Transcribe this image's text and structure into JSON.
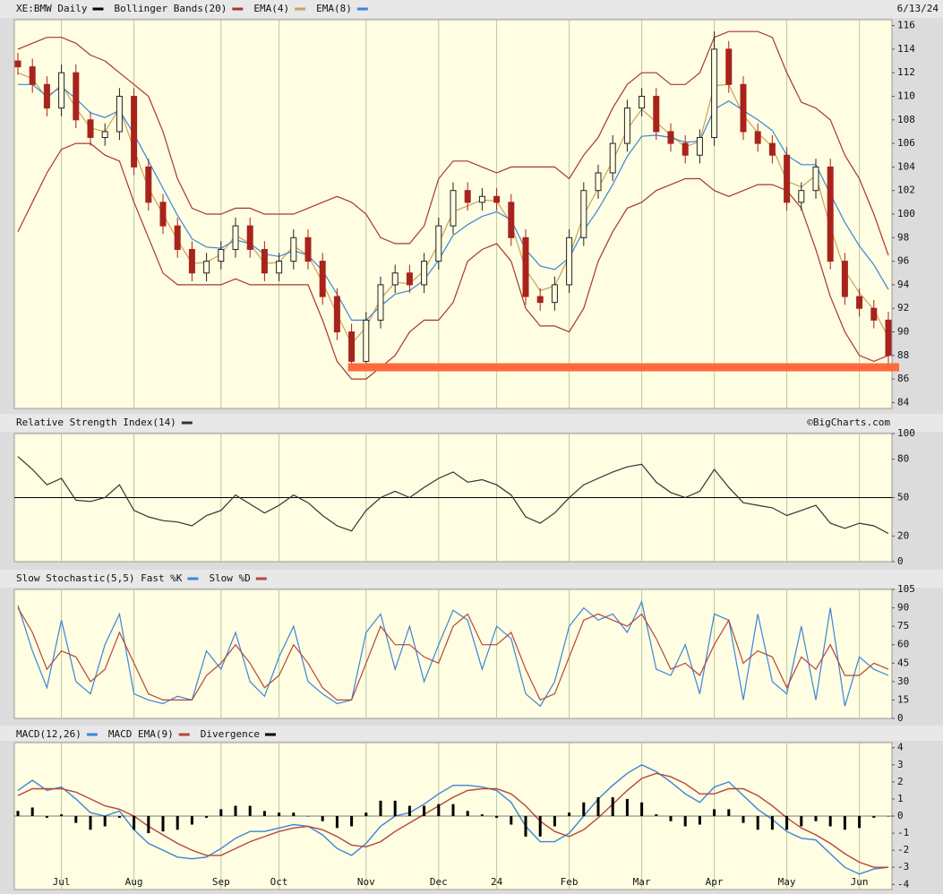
{
  "chart_data": [
    {
      "type": "candlestick",
      "title": "XE:BMW Daily",
      "color": "#000000",
      "date": "6/13/24",
      "up_color": "#222222",
      "down_color": "#a8231c",
      "open": [
        113,
        112.5,
        111,
        109,
        112,
        108,
        106.5,
        107,
        110,
        104,
        101,
        99,
        97,
        95,
        96,
        97,
        99,
        97,
        95,
        96,
        98,
        96,
        93,
        90,
        87.5,
        91,
        94,
        95,
        94,
        96,
        99,
        102,
        101,
        101.5,
        101,
        98,
        93,
        92.5,
        94,
        98,
        102,
        103.5,
        106,
        109,
        110,
        107,
        106,
        105,
        106.5,
        114,
        111,
        107,
        106,
        105,
        101,
        102,
        104,
        96,
        93,
        92,
        91
      ],
      "high": [
        113.7,
        113.2,
        111.7,
        112.7,
        112.7,
        108.7,
        107.7,
        110.7,
        110.7,
        104.7,
        101.7,
        99.7,
        97.7,
        96.7,
        97.7,
        99.7,
        99.7,
        97.7,
        96.7,
        98.7,
        98.7,
        96.7,
        93.7,
        90.7,
        91.7,
        94.7,
        95.7,
        95.7,
        96.7,
        99.7,
        102.7,
        102.7,
        102.2,
        102.2,
        101.7,
        98.7,
        93.7,
        94.7,
        98.7,
        102.7,
        104.2,
        106.7,
        109.7,
        110.7,
        110.7,
        107.7,
        106.7,
        107.2,
        115.5,
        114.7,
        111.7,
        107.7,
        106.7,
        105.7,
        102.7,
        104.7,
        104.7,
        96.7,
        93.7,
        92.7,
        91.7
      ],
      "low": [
        111.8,
        110.3,
        108.3,
        108.3,
        107.3,
        105.8,
        105.8,
        106.3,
        103.3,
        100.3,
        98.3,
        96.3,
        94.3,
        94.3,
        95.3,
        96.3,
        96.3,
        94.3,
        94.3,
        95.3,
        95.3,
        92.3,
        89.3,
        86.8,
        86.8,
        90.3,
        93.3,
        93.3,
        93.3,
        95.3,
        98.3,
        100.3,
        100.3,
        100.3,
        97.3,
        92.3,
        91.8,
        91.8,
        93.3,
        97.3,
        101.3,
        102.8,
        105.3,
        108.3,
        106.3,
        105.3,
        104.3,
        104.3,
        105.8,
        110.3,
        106.3,
        105.3,
        104.3,
        100.3,
        100.3,
        101.3,
        95.3,
        92.3,
        91.3,
        90.3,
        87.3
      ],
      "close": [
        112.5,
        111,
        109,
        112,
        108,
        106.5,
        107,
        110,
        104,
        101,
        99,
        97,
        95,
        96,
        97,
        99,
        97,
        95,
        96,
        98,
        96,
        93,
        90,
        87.5,
        91,
        94,
        95,
        94,
        96,
        99,
        102,
        101,
        101.5,
        101,
        98,
        93,
        92.5,
        94,
        98,
        102,
        103.5,
        106,
        109,
        110,
        107,
        106,
        105,
        106.5,
        114,
        111,
        107,
        106,
        105,
        101,
        102,
        104,
        96,
        93,
        92,
        91,
        88
      ],
      "series": [
        {
          "name": "Bollinger Bands(20)",
          "color": "#a8382e",
          "upper": [
            114,
            114.5,
            115,
            115,
            114.5,
            113.5,
            113,
            112,
            111,
            110,
            107,
            103,
            100.5,
            100,
            100,
            100.5,
            100.5,
            100,
            100,
            100,
            100.5,
            101,
            101.5,
            101,
            100,
            98,
            97.5,
            97.5,
            99,
            103,
            104.5,
            104.5,
            104,
            103.5,
            104,
            104,
            104,
            104,
            103,
            105,
            106.5,
            109,
            111,
            112,
            112,
            111,
            111,
            112,
            115,
            115.5,
            115.5,
            115.5,
            115,
            112,
            109.5,
            109,
            108,
            105,
            103,
            100,
            96.5
          ],
          "lower": [
            98.5,
            101,
            103.5,
            105.5,
            106,
            106,
            105,
            104.5,
            101,
            98,
            95,
            94,
            94,
            94,
            94,
            94.5,
            94,
            94,
            94,
            94,
            94,
            91,
            87.5,
            86,
            86,
            87,
            88,
            90,
            91,
            91,
            92.5,
            96,
            97,
            97.5,
            96,
            92,
            90.5,
            90.5,
            90,
            92,
            96,
            98.5,
            100.5,
            101,
            102,
            102.5,
            103,
            103,
            102,
            101.5,
            102,
            102.5,
            102.5,
            102,
            100.5,
            97,
            93,
            90,
            88,
            87.5,
            88
          ]
        },
        {
          "name": "EMA(4)",
          "color": "#c9a35a",
          "values": [
            112,
            111.5,
            109.8,
            111,
            109,
            107.3,
            107,
            109,
            105.5,
            102.2,
            100,
            97.8,
            95.8,
            95.9,
            96.6,
            98.2,
            97.5,
            95.8,
            95.9,
            97.3,
            96.5,
            94.2,
            91.5,
            89,
            90.4,
            92.8,
            94.2,
            94.1,
            95.2,
            97.5,
            100.2,
            100.7,
            101.2,
            101.1,
            99.2,
            95.3,
            93.5,
            93.9,
            96.4,
            99.9,
            102.2,
            104.5,
            107.2,
            108.9,
            107.8,
            106.7,
            105.7,
            106.2,
            110.9,
            111,
            108.4,
            106.9,
            105.7,
            102.8,
            102.3,
            103.3,
            98.9,
            95.2,
            93.3,
            91.9,
            89.5
          ]
        },
        {
          "name": "EMA(8)",
          "color": "#3b86d8",
          "values": [
            111,
            111,
            110,
            110.8,
            109.8,
            108.6,
            108.2,
            108.8,
            106.8,
            104.5,
            102.2,
            99.9,
            97.9,
            97.2,
            97.1,
            97.8,
            97.5,
            96.6,
            96.4,
            96.9,
            96.5,
            95.2,
            93.2,
            91,
            91,
            92.2,
            93.2,
            93.5,
            94.4,
            96.1,
            98.2,
            99.1,
            99.8,
            100.2,
            99.5,
            97,
            95.6,
            95.3,
            96.3,
            98.6,
            100.4,
            102.5,
            104.9,
            106.6,
            106.7,
            106.5,
            106.1,
            106.2,
            108.9,
            109.6,
            108.8,
            108,
            107.1,
            105,
            104.2,
            104.2,
            101.7,
            99.3,
            97.3,
            95.7,
            93.6
          ]
        }
      ],
      "support_level": {
        "value": 87,
        "color": "#ff6a3d"
      },
      "ylim": [
        83.5,
        116.5
      ],
      "yticks": [
        84,
        86,
        88,
        90,
        92,
        94,
        96,
        98,
        100,
        102,
        104,
        106,
        108,
        110,
        112,
        114,
        116
      ]
    },
    {
      "type": "line",
      "credit": "©BigCharts.com",
      "series": [
        {
          "name": "Relative Strength Index(14)",
          "color": "#333333",
          "values": [
            82,
            72,
            60,
            65,
            48,
            47,
            50,
            60,
            40,
            35,
            32,
            31,
            28,
            36,
            40,
            52,
            45,
            38,
            44,
            52,
            46,
            36,
            28,
            24,
            40,
            50,
            55,
            50,
            58,
            65,
            70,
            62,
            64,
            60,
            52,
            35,
            30,
            38,
            50,
            60,
            65,
            70,
            74,
            76,
            62,
            54,
            50,
            55,
            72,
            58,
            46,
            44,
            42,
            36,
            40,
            44,
            30,
            26,
            30,
            28,
            22
          ]
        }
      ],
      "reference_line": 50,
      "ylim": [
        0,
        100
      ],
      "yticks": [
        0,
        20,
        50,
        80,
        100
      ]
    },
    {
      "type": "line",
      "series": [
        {
          "name": "Slow Stochastic(5,5) Fast %K",
          "color": "#3b86d8",
          "values": [
            92,
            55,
            25,
            80,
            30,
            20,
            60,
            85,
            20,
            15,
            12,
            18,
            15,
            55,
            40,
            70,
            30,
            18,
            50,
            75,
            30,
            20,
            12,
            15,
            70,
            85,
            40,
            75,
            30,
            60,
            88,
            80,
            40,
            75,
            65,
            20,
            10,
            30,
            75,
            90,
            80,
            85,
            70,
            95,
            40,
            35,
            60,
            20,
            85,
            80,
            15,
            85,
            30,
            20,
            75,
            15,
            90,
            10,
            50,
            40,
            35
          ]
        },
        {
          "name": "Slow %D",
          "color": "#b5473a",
          "values": [
            90,
            70,
            40,
            55,
            50,
            30,
            40,
            70,
            45,
            20,
            15,
            15,
            15,
            35,
            45,
            60,
            45,
            25,
            35,
            60,
            45,
            25,
            15,
            15,
            45,
            75,
            60,
            60,
            50,
            45,
            75,
            85,
            60,
            60,
            70,
            40,
            15,
            20,
            50,
            80,
            85,
            80,
            75,
            85,
            65,
            40,
            45,
            35,
            60,
            80,
            45,
            55,
            50,
            25,
            50,
            40,
            60,
            35,
            35,
            45,
            40
          ]
        }
      ],
      "ylim": [
        0,
        105
      ],
      "yticks": [
        0,
        15,
        30,
        45,
        60,
        75,
        90,
        105
      ]
    },
    {
      "type": "macd",
      "categories": [
        null,
        null,
        null,
        "Jul",
        null,
        null,
        null,
        null,
        "Aug",
        null,
        null,
        null,
        null,
        null,
        "Sep",
        null,
        null,
        null,
        "Oct",
        null,
        null,
        null,
        null,
        null,
        "Nov",
        null,
        null,
        null,
        null,
        "Dec",
        null,
        null,
        null,
        "24",
        null,
        null,
        null,
        null,
        "Feb",
        null,
        null,
        null,
        null,
        "Mar",
        null,
        null,
        null,
        null,
        "Apr",
        null,
        null,
        null,
        null,
        "May",
        null,
        null,
        null,
        null,
        "Jun",
        null,
        null
      ],
      "series": [
        {
          "name": "MACD(12,26)",
          "color": "#3b86d8",
          "values": [
            1.5,
            2.1,
            1.5,
            1.7,
            1.0,
            0.2,
            0,
            0.3,
            -0.8,
            -1.6,
            -2.0,
            -2.4,
            -2.5,
            -2.4,
            -1.9,
            -1.3,
            -0.9,
            -0.9,
            -0.7,
            -0.5,
            -0.6,
            -1.1,
            -1.9,
            -2.3,
            -1.6,
            -0.6,
            0,
            0.2,
            0.7,
            1.3,
            1.8,
            1.8,
            1.7,
            1.5,
            0.8,
            -0.6,
            -1.5,
            -1.5,
            -1.0,
            0,
            1.0,
            1.8,
            2.5,
            3.0,
            2.6,
            2.0,
            1.3,
            0.8,
            1.7,
            2.0,
            1.2,
            0.4,
            -0.2,
            -0.9,
            -1.3,
            -1.4,
            -2.2,
            -3.0,
            -3.4,
            -3.1,
            -3.0
          ]
        },
        {
          "name": "MACD EMA(9)",
          "color": "#b5473a",
          "values": [
            1.2,
            1.6,
            1.6,
            1.6,
            1.4,
            1.0,
            0.6,
            0.4,
            0,
            -0.6,
            -1.1,
            -1.6,
            -2.0,
            -2.3,
            -2.3,
            -1.9,
            -1.5,
            -1.2,
            -0.9,
            -0.7,
            -0.6,
            -0.8,
            -1.2,
            -1.7,
            -1.8,
            -1.5,
            -0.9,
            -0.4,
            0.1,
            0.6,
            1.1,
            1.5,
            1.6,
            1.6,
            1.3,
            0.6,
            -0.3,
            -0.9,
            -1.2,
            -0.8,
            -0.1,
            0.7,
            1.5,
            2.2,
            2.5,
            2.3,
            1.9,
            1.3,
            1.3,
            1.6,
            1.6,
            1.2,
            0.6,
            -0.1,
            -0.7,
            -1.1,
            -1.6,
            -2.2,
            -2.7,
            -3.0,
            -3.0
          ]
        },
        {
          "name": "Divergence",
          "color": "#000000",
          "values": [
            0.3,
            0.5,
            -0.1,
            0.1,
            -0.4,
            -0.8,
            -0.6,
            -0.1,
            -0.8,
            -1.0,
            -0.9,
            -0.8,
            -0.5,
            -0.1,
            0.4,
            0.6,
            0.6,
            0.3,
            0.2,
            0.2,
            0,
            -0.3,
            -0.7,
            -0.6,
            0.2,
            0.9,
            0.9,
            0.6,
            0.6,
            0.7,
            0.7,
            0.3,
            0.1,
            -0.1,
            -0.5,
            -1.2,
            -1.2,
            -0.6,
            0.2,
            0.8,
            1.1,
            1.1,
            1.0,
            0.8,
            0.1,
            -0.3,
            -0.6,
            -0.5,
            0.4,
            0.4,
            -0.4,
            -0.8,
            -0.8,
            -0.8,
            -0.6,
            -0.3,
            -0.6,
            -0.8,
            -0.7,
            -0.1,
            0
          ]
        }
      ],
      "ylim": [
        -4.3,
        4.3
      ],
      "yticks": [
        -4,
        -3,
        -2,
        -1,
        0,
        1,
        2,
        3,
        4
      ]
    }
  ]
}
